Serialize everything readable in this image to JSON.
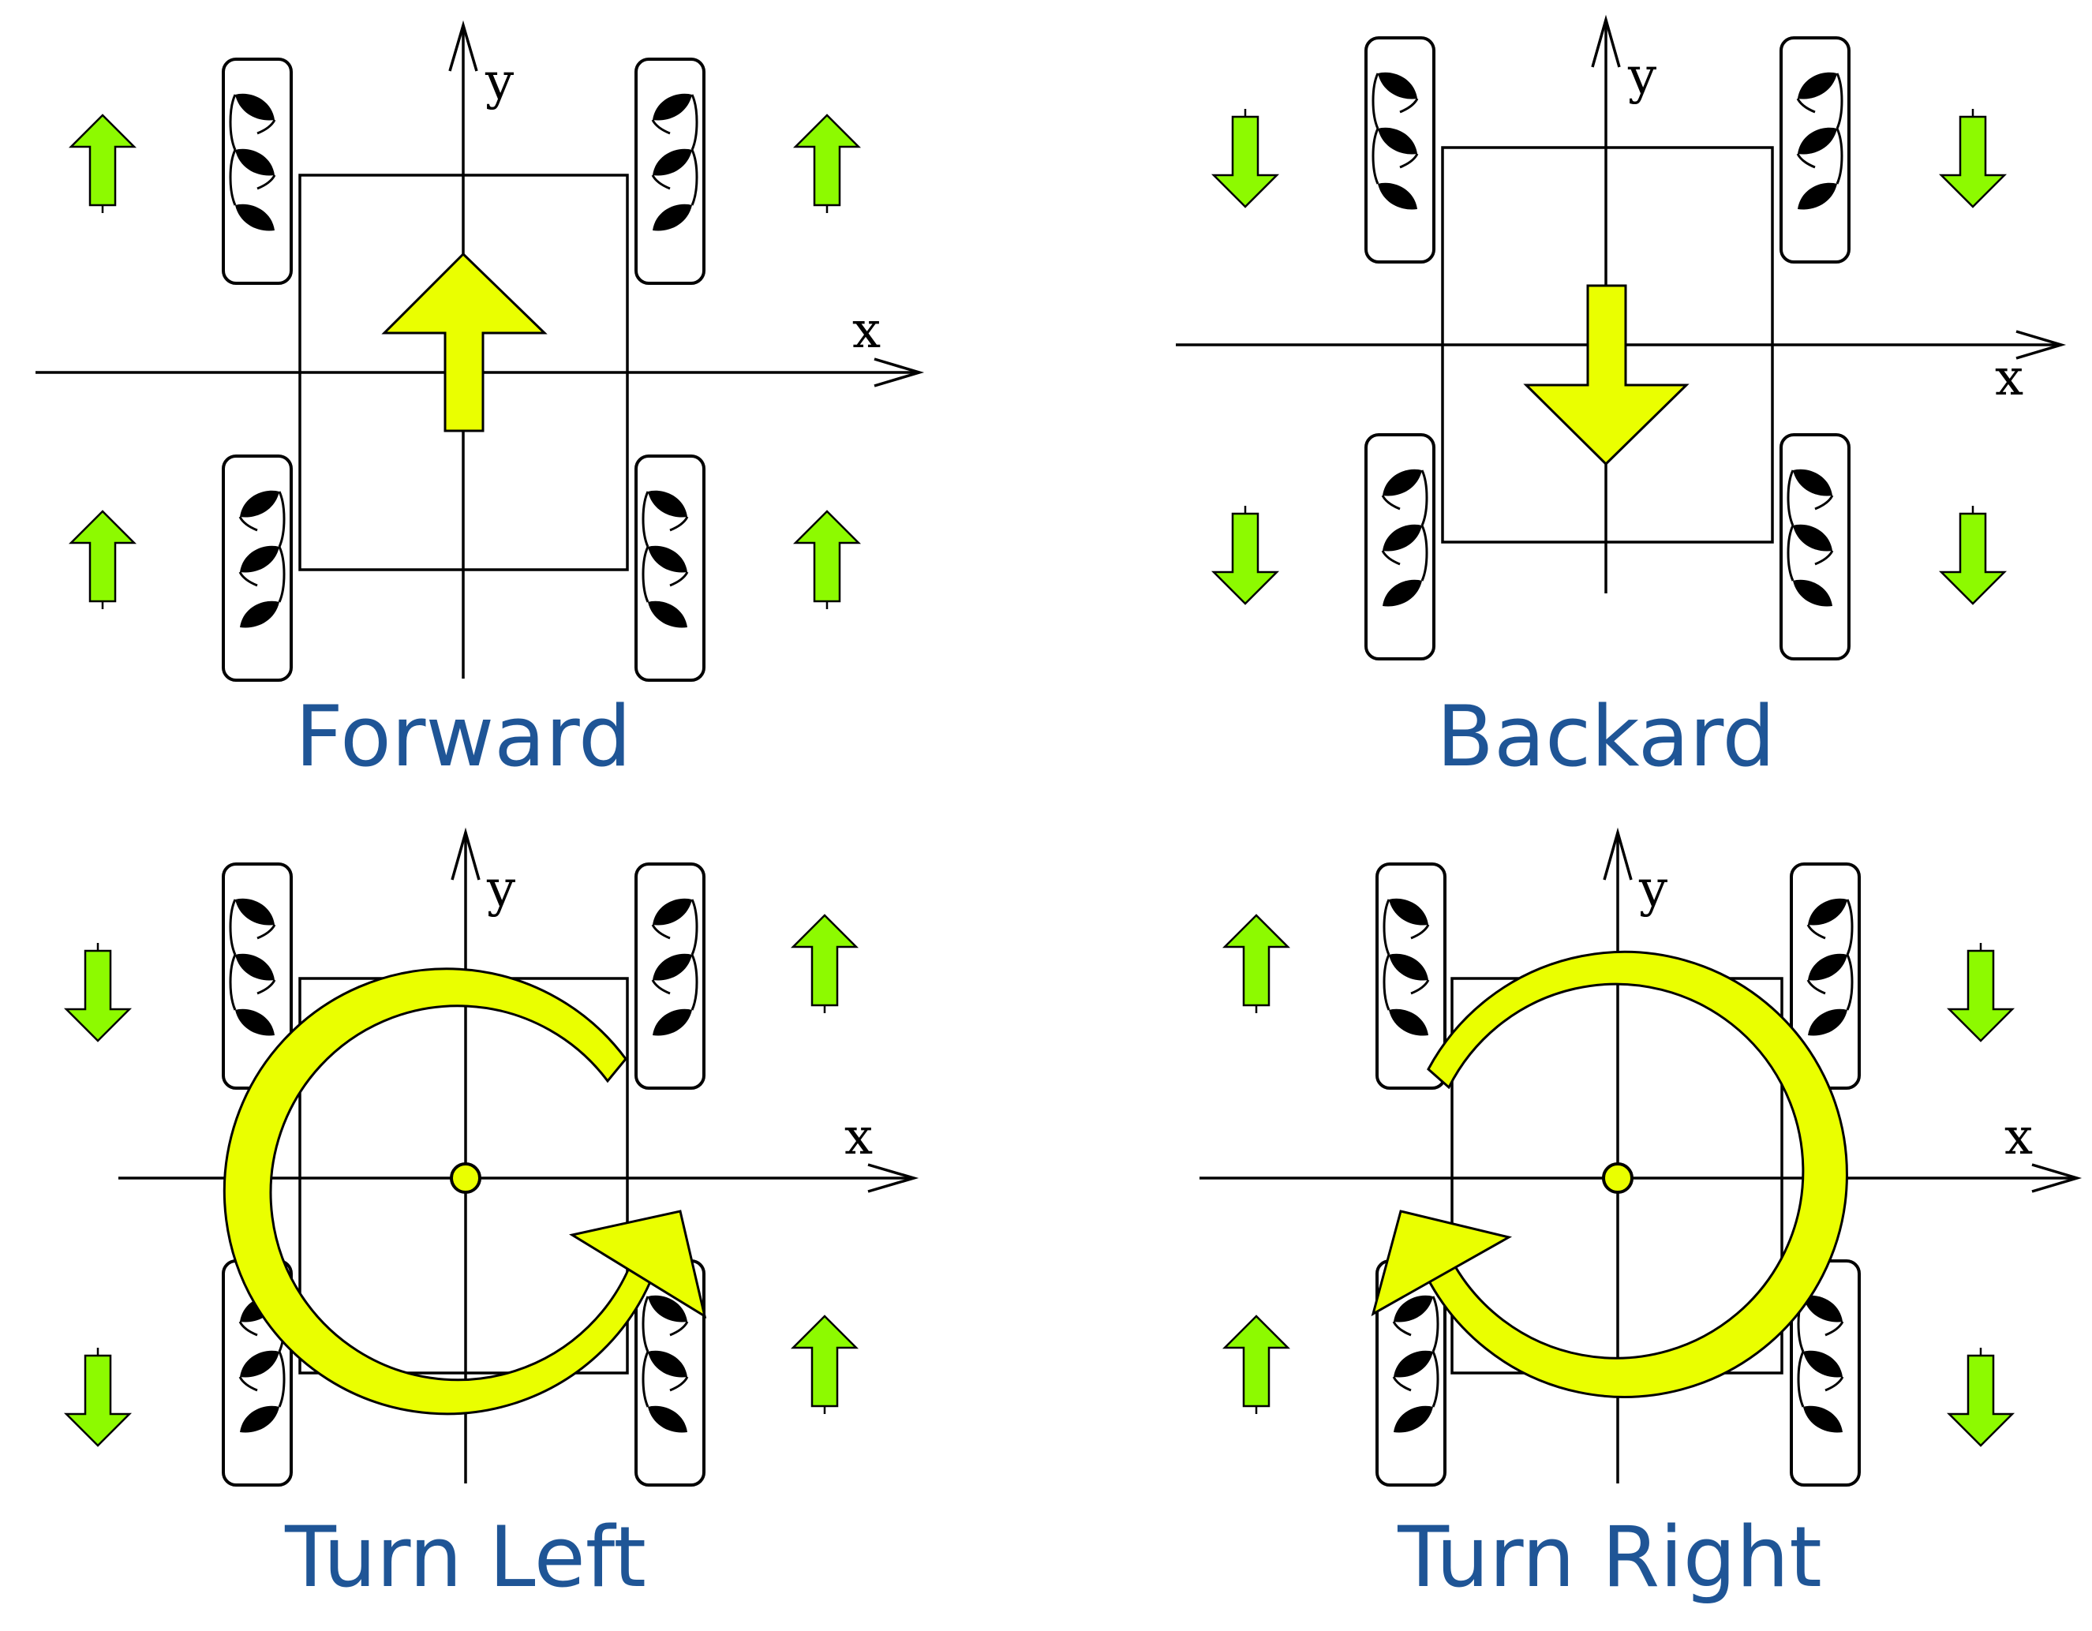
{
  "panels": [
    {
      "id": "forward",
      "caption": "Forward",
      "x_label": "x",
      "y_label": "y",
      "motion": "forward",
      "wheel_arrows": {
        "front_left": "up",
        "front_right": "up",
        "rear_left": "up",
        "rear_right": "up"
      }
    },
    {
      "id": "backward",
      "caption": "Backard",
      "x_label": "x",
      "y_label": "y",
      "motion": "backward",
      "wheel_arrows": {
        "front_left": "down",
        "front_right": "down",
        "rear_left": "down",
        "rear_right": "down"
      }
    },
    {
      "id": "turn-left",
      "caption": "Turn Left",
      "x_label": "x",
      "y_label": "y",
      "motion": "rotate-ccw",
      "wheel_arrows": {
        "front_left": "down",
        "front_right": "up",
        "rear_left": "down",
        "rear_right": "up"
      }
    },
    {
      "id": "turn-right",
      "caption": "Turn Right",
      "x_label": "x",
      "y_label": "y",
      "motion": "rotate-cw",
      "wheel_arrows": {
        "front_left": "up",
        "front_right": "down",
        "rear_left": "up",
        "rear_right": "down"
      }
    }
  ],
  "colors": {
    "wheel_arrow": "#8dfa00",
    "motion_arrow": "#eaff00",
    "caption": "#1f5596"
  },
  "wheel_type": "mecanum-wheel-icon"
}
